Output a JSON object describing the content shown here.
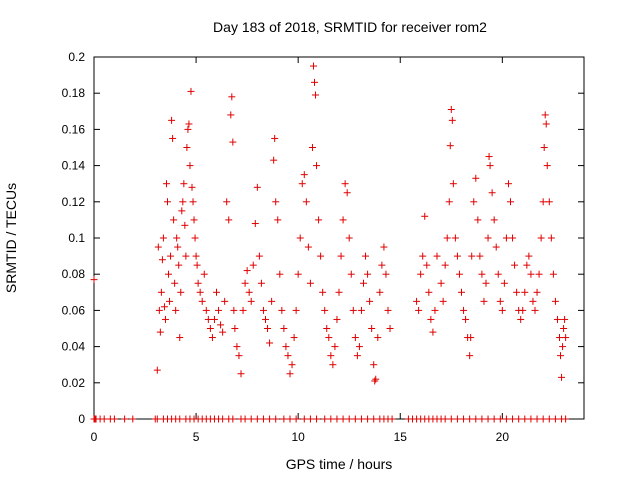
{
  "chart_data": {
    "type": "scatter",
    "title": "Day 183 of 2018, SRMTID for receiver rom2",
    "xlabel": "GPS time / hours",
    "ylabel": "SRMTID / TECUs",
    "xlim": [
      0,
      24
    ],
    "ylim": [
      0,
      0.2
    ],
    "x_ticks": [
      0,
      5,
      10,
      15,
      20
    ],
    "y_ticks": [
      0,
      0.02,
      0.04,
      0.06,
      0.08,
      0.1,
      0.12,
      0.14,
      0.16,
      0.18,
      0.2
    ],
    "x_tick_labels": [
      "0",
      "5",
      "10",
      "15",
      "20"
    ],
    "y_tick_labels": [
      "0",
      "0.02",
      "0.04",
      "0.06",
      "0.08",
      "0.1",
      "0.12",
      "0.14",
      "0.16",
      "0.18",
      "0.2"
    ],
    "marker": "+",
    "color": "#e00000",
    "grid": false,
    "series": [
      {
        "name": "SRMTID",
        "points": [
          [
            0.0,
            0.077
          ],
          [
            3.1,
            0.027
          ],
          [
            3.15,
            0.095
          ],
          [
            3.2,
            0.06
          ],
          [
            3.25,
            0.048
          ],
          [
            3.3,
            0.07
          ],
          [
            3.35,
            0.088
          ],
          [
            3.4,
            0.1
          ],
          [
            3.45,
            0.062
          ],
          [
            3.5,
            0.055
          ],
          [
            3.55,
            0.13
          ],
          [
            3.6,
            0.12
          ],
          [
            3.65,
            0.08
          ],
          [
            3.7,
            0.065
          ],
          [
            3.75,
            0.09
          ],
          [
            3.8,
            0.165
          ],
          [
            3.85,
            0.155
          ],
          [
            3.9,
            0.11
          ],
          [
            3.95,
            0.075
          ],
          [
            4.0,
            0.06
          ],
          [
            4.05,
            0.1
          ],
          [
            4.1,
            0.095
          ],
          [
            4.15,
            0.085
          ],
          [
            4.2,
            0.045
          ],
          [
            4.25,
            0.07
          ],
          [
            4.3,
            0.115
          ],
          [
            4.35,
            0.12
          ],
          [
            4.4,
            0.13
          ],
          [
            4.45,
            0.107
          ],
          [
            4.5,
            0.09
          ],
          [
            4.55,
            0.15
          ],
          [
            4.6,
            0.16
          ],
          [
            4.65,
            0.163
          ],
          [
            4.7,
            0.14
          ],
          [
            4.75,
            0.181
          ],
          [
            4.8,
            0.128
          ],
          [
            4.85,
            0.12
          ],
          [
            4.9,
            0.11
          ],
          [
            4.95,
            0.1
          ],
          [
            5.0,
            0.09
          ],
          [
            5.05,
            0.085
          ],
          [
            5.1,
            0.075
          ],
          [
            5.2,
            0.07
          ],
          [
            5.3,
            0.065
          ],
          [
            5.4,
            0.08
          ],
          [
            5.5,
            0.06
          ],
          [
            5.6,
            0.055
          ],
          [
            5.7,
            0.05
          ],
          [
            5.8,
            0.045
          ],
          [
            5.9,
            0.055
          ],
          [
            6.0,
            0.07
          ],
          [
            6.1,
            0.06
          ],
          [
            6.2,
            0.052
          ],
          [
            6.3,
            0.048
          ],
          [
            6.4,
            0.065
          ],
          [
            6.5,
            0.12
          ],
          [
            6.6,
            0.11
          ],
          [
            6.7,
            0.168
          ],
          [
            6.75,
            0.178
          ],
          [
            6.8,
            0.153
          ],
          [
            6.85,
            0.06
          ],
          [
            6.9,
            0.05
          ],
          [
            7.0,
            0.04
          ],
          [
            7.1,
            0.035
          ],
          [
            7.2,
            0.025
          ],
          [
            7.3,
            0.06
          ],
          [
            7.4,
            0.075
          ],
          [
            7.5,
            0.082
          ],
          [
            7.6,
            0.07
          ],
          [
            7.7,
            0.065
          ],
          [
            7.8,
            0.085
          ],
          [
            7.9,
            0.108
          ],
          [
            8.0,
            0.128
          ],
          [
            8.1,
            0.09
          ],
          [
            8.2,
            0.075
          ],
          [
            8.3,
            0.06
          ],
          [
            8.4,
            0.055
          ],
          [
            8.5,
            0.05
          ],
          [
            8.6,
            0.042
          ],
          [
            8.7,
            0.065
          ],
          [
            8.8,
            0.143
          ],
          [
            8.85,
            0.155
          ],
          [
            8.9,
            0.12
          ],
          [
            9.0,
            0.11
          ],
          [
            9.1,
            0.08
          ],
          [
            9.2,
            0.06
          ],
          [
            9.3,
            0.05
          ],
          [
            9.4,
            0.04
          ],
          [
            9.5,
            0.035
          ],
          [
            9.6,
            0.025
          ],
          [
            9.7,
            0.03
          ],
          [
            9.8,
            0.045
          ],
          [
            9.9,
            0.06
          ],
          [
            10.0,
            0.08
          ],
          [
            10.1,
            0.1
          ],
          [
            10.2,
            0.13
          ],
          [
            10.3,
            0.135
          ],
          [
            10.4,
            0.12
          ],
          [
            10.5,
            0.095
          ],
          [
            10.6,
            0.075
          ],
          [
            10.7,
            0.15
          ],
          [
            10.75,
            0.195
          ],
          [
            10.8,
            0.186
          ],
          [
            10.85,
            0.179
          ],
          [
            10.9,
            0.14
          ],
          [
            11.0,
            0.11
          ],
          [
            11.1,
            0.09
          ],
          [
            11.2,
            0.07
          ],
          [
            11.3,
            0.06
          ],
          [
            11.4,
            0.05
          ],
          [
            11.5,
            0.045
          ],
          [
            11.6,
            0.035
          ],
          [
            11.7,
            0.03
          ],
          [
            11.8,
            0.04
          ],
          [
            11.9,
            0.055
          ],
          [
            12.0,
            0.07
          ],
          [
            12.1,
            0.09
          ],
          [
            12.2,
            0.11
          ],
          [
            12.3,
            0.13
          ],
          [
            12.4,
            0.125
          ],
          [
            12.5,
            0.1
          ],
          [
            12.6,
            0.08
          ],
          [
            12.7,
            0.06
          ],
          [
            12.8,
            0.045
          ],
          [
            12.9,
            0.035
          ],
          [
            13.0,
            0.04
          ],
          [
            13.1,
            0.06
          ],
          [
            13.2,
            0.075
          ],
          [
            13.3,
            0.09
          ],
          [
            13.4,
            0.08
          ],
          [
            13.5,
            0.065
          ],
          [
            13.6,
            0.05
          ],
          [
            13.7,
            0.03
          ],
          [
            13.75,
            0.021
          ],
          [
            13.8,
            0.022
          ],
          [
            13.9,
            0.045
          ],
          [
            14.0,
            0.07
          ],
          [
            14.1,
            0.085
          ],
          [
            14.2,
            0.095
          ],
          [
            14.3,
            0.08
          ],
          [
            14.4,
            0.06
          ],
          [
            14.5,
            0.05
          ],
          [
            15.8,
            0.065
          ],
          [
            15.9,
            0.06
          ],
          [
            16.0,
            0.08
          ],
          [
            16.1,
            0.09
          ],
          [
            16.2,
            0.112
          ],
          [
            16.3,
            0.085
          ],
          [
            16.4,
            0.07
          ],
          [
            16.5,
            0.055
          ],
          [
            16.6,
            0.048
          ],
          [
            16.7,
            0.06
          ],
          [
            16.8,
            0.09
          ],
          [
            17.0,
            0.075
          ],
          [
            17.1,
            0.065
          ],
          [
            17.2,
            0.085
          ],
          [
            17.3,
            0.1
          ],
          [
            17.4,
            0.12
          ],
          [
            17.45,
            0.151
          ],
          [
            17.5,
            0.171
          ],
          [
            17.55,
            0.165
          ],
          [
            17.6,
            0.13
          ],
          [
            17.7,
            0.1
          ],
          [
            17.8,
            0.09
          ],
          [
            17.9,
            0.08
          ],
          [
            18.0,
            0.07
          ],
          [
            18.1,
            0.06
          ],
          [
            18.2,
            0.055
          ],
          [
            18.3,
            0.045
          ],
          [
            18.4,
            0.035
          ],
          [
            18.45,
            0.045
          ],
          [
            18.5,
            0.09
          ],
          [
            18.6,
            0.12
          ],
          [
            18.7,
            0.133
          ],
          [
            18.8,
            0.11
          ],
          [
            18.9,
            0.09
          ],
          [
            19.0,
            0.08
          ],
          [
            19.1,
            0.065
          ],
          [
            19.2,
            0.075
          ],
          [
            19.3,
            0.1
          ],
          [
            19.35,
            0.145
          ],
          [
            19.4,
            0.14
          ],
          [
            19.5,
            0.125
          ],
          [
            19.6,
            0.11
          ],
          [
            19.7,
            0.095
          ],
          [
            19.8,
            0.08
          ],
          [
            19.9,
            0.065
          ],
          [
            20.0,
            0.06
          ],
          [
            20.1,
            0.075
          ],
          [
            20.2,
            0.1
          ],
          [
            20.3,
            0.13
          ],
          [
            20.4,
            0.12
          ],
          [
            20.5,
            0.1
          ],
          [
            20.6,
            0.085
          ],
          [
            20.7,
            0.07
          ],
          [
            20.8,
            0.06
          ],
          [
            20.9,
            0.055
          ],
          [
            21.0,
            0.06
          ],
          [
            21.1,
            0.07
          ],
          [
            21.2,
            0.085
          ],
          [
            21.3,
            0.09
          ],
          [
            21.4,
            0.08
          ],
          [
            21.5,
            0.065
          ],
          [
            21.6,
            0.06
          ],
          [
            21.7,
            0.07
          ],
          [
            21.8,
            0.08
          ],
          [
            21.9,
            0.1
          ],
          [
            22.0,
            0.12
          ],
          [
            22.05,
            0.15
          ],
          [
            22.1,
            0.168
          ],
          [
            22.15,
            0.163
          ],
          [
            22.2,
            0.14
          ],
          [
            22.3,
            0.12
          ],
          [
            22.4,
            0.1
          ],
          [
            22.5,
            0.08
          ],
          [
            22.6,
            0.065
          ],
          [
            22.7,
            0.055
          ],
          [
            22.8,
            0.045
          ],
          [
            22.85,
            0.035
          ],
          [
            22.9,
            0.023
          ],
          [
            22.95,
            0.04
          ],
          [
            23.0,
            0.05
          ],
          [
            23.05,
            0.055
          ],
          [
            23.1,
            0.045
          ]
        ],
        "zero_points_x": [
          0.0,
          0.05,
          0.1,
          0.3,
          0.5,
          0.8,
          1.0,
          1.5,
          1.9,
          3.0,
          3.1,
          3.4,
          3.6,
          3.8,
          4.0,
          4.2,
          4.5,
          4.7,
          4.9,
          5.1,
          5.3,
          5.5,
          5.7,
          5.9,
          6.1,
          6.3,
          6.6,
          6.8,
          7.2,
          7.4,
          7.7,
          8.0,
          8.3,
          8.6,
          8.9,
          9.3,
          9.6,
          9.9,
          10.3,
          10.6,
          10.9,
          11.3,
          11.6,
          11.9,
          12.2,
          12.5,
          12.8,
          13.1,
          13.4,
          13.7,
          14.0,
          14.2,
          14.4,
          14.6,
          15.4,
          15.6,
          15.8,
          16.0,
          16.2,
          16.4,
          16.6,
          16.8,
          17.0,
          17.2,
          17.5,
          17.8,
          18.1,
          18.4,
          18.7,
          19.0,
          19.3,
          19.6,
          19.9,
          20.2,
          20.5,
          20.8,
          21.1,
          21.4,
          21.7,
          22.0,
          22.3,
          22.6,
          22.9,
          23.1
        ]
      }
    ]
  }
}
